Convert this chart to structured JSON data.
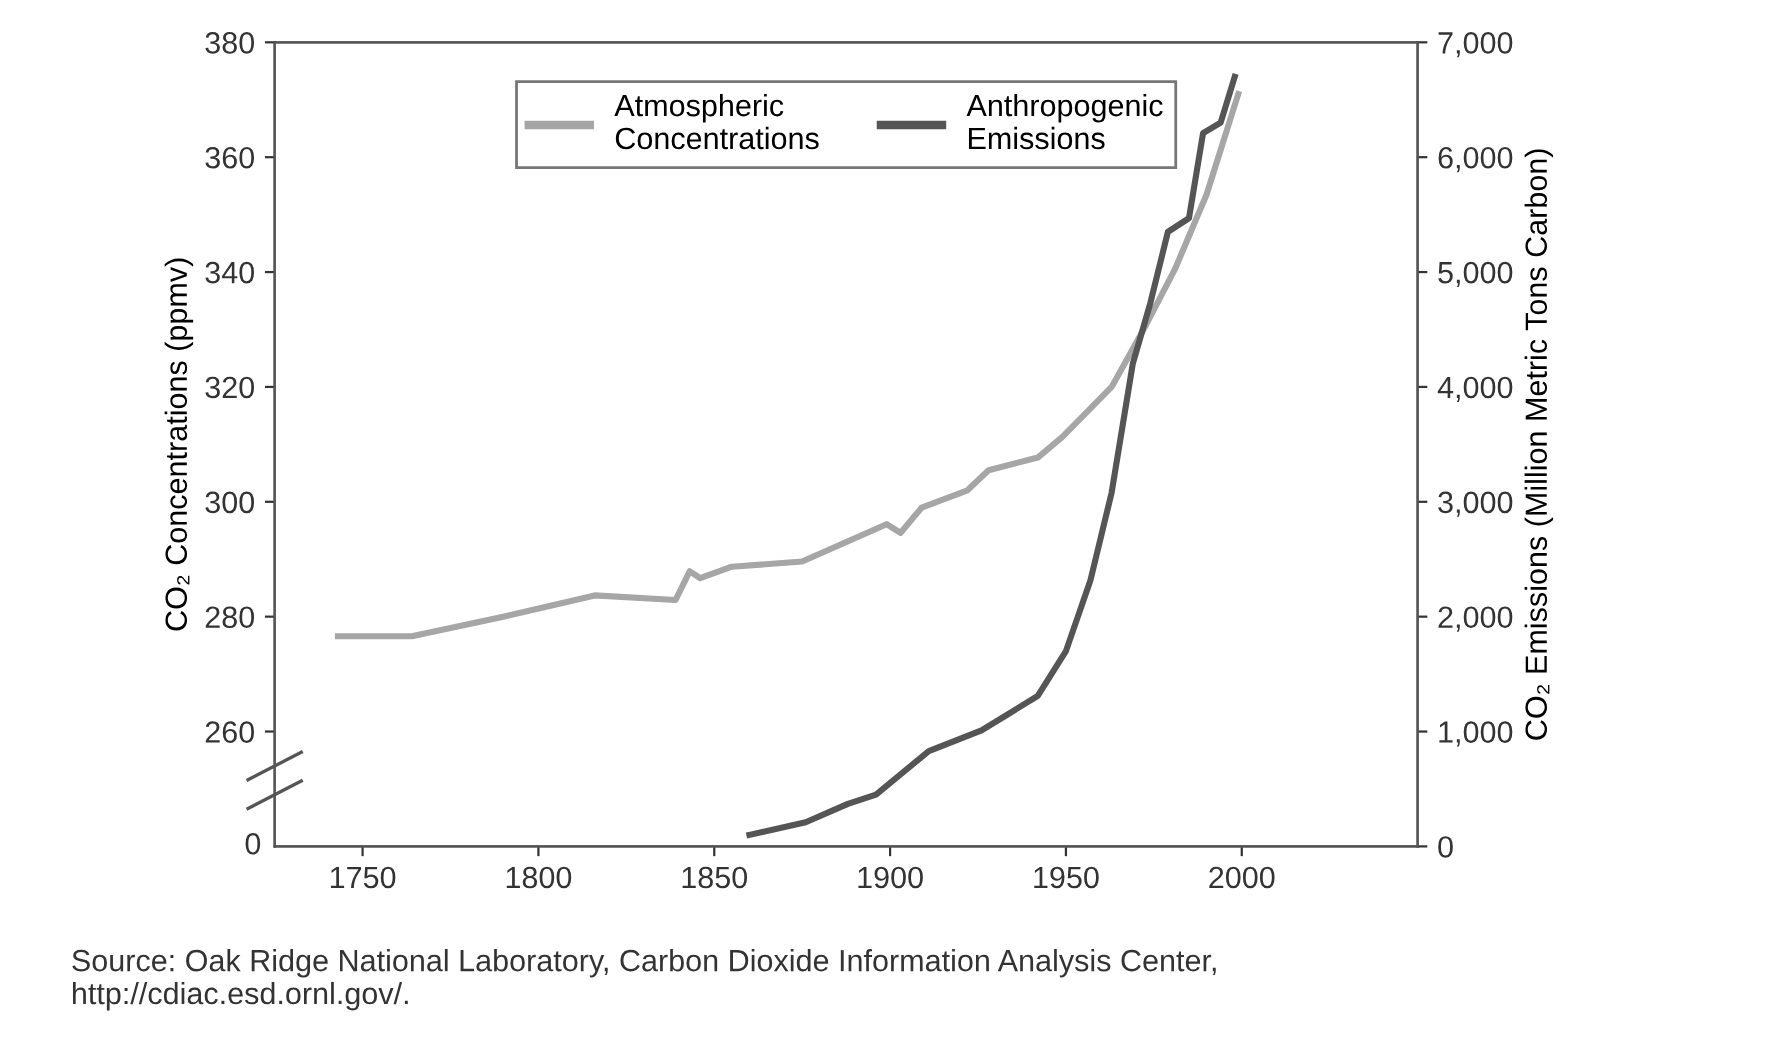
{
  "chart_data": [
    {
      "type": "line",
      "xlim": [
        1725,
        2050
      ],
      "xticks": [
        1750,
        1800,
        1850,
        1900,
        1950,
        2000
      ],
      "ylim": [
        240,
        380
      ],
      "yticks": [
        260,
        280,
        300,
        320,
        340,
        360,
        380
      ],
      "y2lim": [
        0,
        7000
      ],
      "y2ticks": [
        0,
        {
          "value": 1000,
          "label": "1,000"
        },
        {
          "value": 2000,
          "label": "2,000"
        },
        {
          "value": 3000,
          "label": "3,000"
        },
        {
          "value": 4000,
          "label": "4,000"
        },
        {
          "value": 5000,
          "label": "5,000"
        },
        {
          "value": 6000,
          "label": "6,000"
        },
        {
          "value": 7000,
          "label": "7,000"
        }
      ],
      "ylabel": "CO₂ Concentrations (ppmv)",
      "y2label": "CO₂ Emissions (Million Metric Tons Carbon)",
      "grid": false,
      "legend": "top",
      "marker": "none",
      "line_style": "solid",
      "series": [
        {
          "name": "Atmospheric\nConcentrations",
          "color": "#a6a6a6",
          "axis": "y",
          "x": [
            1743,
            1764,
            1790,
            1816,
            1839,
            1843,
            1846,
            1855,
            1875,
            1899,
            1903,
            1909,
            1922,
            1928,
            1942,
            1949,
            1963,
            1972,
            1981,
            1990,
            1999
          ],
          "values": [
            276.6,
            276.6,
            280,
            283.7,
            282.9,
            287.9,
            286.7,
            288.7,
            289.6,
            296.1,
            294.6,
            299,
            302,
            305.5,
            307.7,
            311.3,
            320,
            329.9,
            340.5,
            353.5,
            371
          ]
        },
        {
          "name": "Anthropogenic\nEmissions",
          "color": "#555555",
          "axis": "y2",
          "x": [
            1860,
            1876,
            1888,
            1896,
            1911,
            1926,
            1942,
            1950,
            1957,
            1963,
            1969,
            1974,
            1979,
            1985,
            1989,
            1994,
            1998
          ],
          "values": [
            100,
            210,
            370,
            450,
            830,
            1010,
            1310,
            1700,
            2320,
            3080,
            4200,
            4730,
            5350,
            5470,
            6210,
            6300,
            6700
          ]
        }
      ],
      "annotations": [
        "Source: Oak Ridge National Laboratory, Carbon Dioxide Information Analysis Center,\nhttp://cdiac.esd.ornl.gov/."
      ]
    },
    {
      "type": "other",
      "annotations": [
        "0"
      ]
    }
  ]
}
